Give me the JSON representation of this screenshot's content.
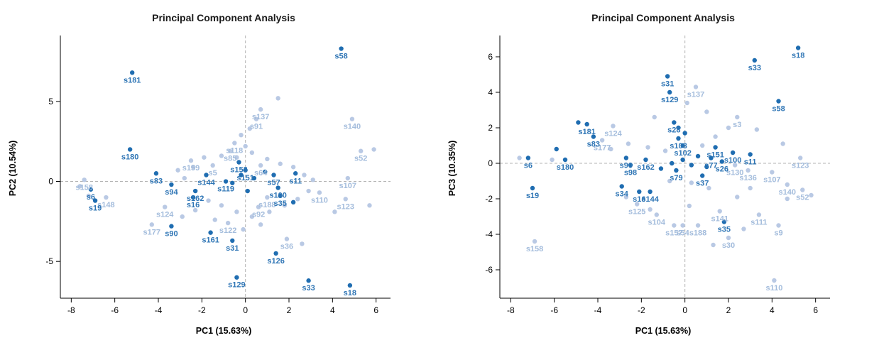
{
  "figure": {
    "background": "#ffffff",
    "description": "Two side-by-side PCA scatter plots with labeled samples"
  },
  "colors": {
    "dark": {
      "point": "#1f6db1",
      "label": "#2e75b5"
    },
    "light": {
      "point": "#b9c9e4",
      "label": "#a3bcdc"
    },
    "zero_line": "#b3b3b3",
    "axis": "#000000",
    "title": "#1a1a1a"
  },
  "chart_data": [
    {
      "type": "scatter",
      "title": "Principal Component Analysis",
      "xlabel": "PC1 (15.63%)",
      "ylabel": "PC2 (10.54%)",
      "xlim": [
        -8.5,
        6.5
      ],
      "ylim": [
        -7.3,
        8.9
      ],
      "xticks": [
        -8,
        -6,
        -4,
        -2,
        0,
        2,
        4,
        6
      ],
      "yticks": [
        -5,
        0,
        5
      ],
      "grid": "dashed-crosshair-at-zero",
      "legend": "none",
      "point_format": [
        "label",
        "x",
        "y"
      ],
      "series": [
        {
          "name": "background-samples",
          "color": "light",
          "points": [
            [
              "s137",
              0.7,
              4.5
            ],
            [
              "s91",
              0.5,
              3.9
            ],
            [
              "s140",
              4.9,
              3.9
            ],
            [
              "s52",
              5.3,
              1.9
            ],
            [
              "s118",
              -0.5,
              2.4
            ],
            [
              "s85",
              -0.7,
              1.9
            ],
            [
              "s159",
              -2.5,
              1.3
            ],
            [
              "s5",
              -1.5,
              1.0
            ],
            [
              "s64",
              0.7,
              1.0
            ],
            [
              "s158",
              -7.4,
              0.1
            ],
            [
              "s148",
              -6.4,
              -1.0
            ],
            [
              "s124",
              -3.7,
              -1.6
            ],
            [
              "s177",
              -4.3,
              -2.7
            ],
            [
              "s122",
              -0.8,
              -2.6
            ],
            [
              "s36",
              1.9,
              -3.6
            ],
            [
              "s107",
              4.7,
              0.2
            ],
            [
              "s110",
              3.4,
              -0.7
            ],
            [
              "s123",
              4.6,
              -1.1
            ],
            [
              "s188",
              1.0,
              -1.0
            ],
            [
              "s92",
              0.6,
              -1.6
            ],
            [
              "",
              1.5,
              5.2
            ],
            [
              "",
              0.2,
              3.3
            ],
            [
              "",
              -0.2,
              2.9
            ],
            [
              "",
              5.9,
              2.0
            ],
            [
              "",
              -7.6,
              -0.3
            ],
            [
              "",
              -7.2,
              -0.9
            ],
            [
              "",
              -3.1,
              0.7
            ],
            [
              "",
              -2.8,
              0.2
            ],
            [
              "",
              -2.4,
              0.9
            ],
            [
              "",
              -1.9,
              1.5
            ],
            [
              "",
              -1.1,
              1.6
            ],
            [
              "",
              -0.4,
              1.5
            ],
            [
              "",
              0.3,
              1.8
            ],
            [
              "",
              1.0,
              1.4
            ],
            [
              "",
              1.6,
              1.1
            ],
            [
              "",
              2.2,
              0.9
            ],
            [
              "",
              2.7,
              0.4
            ],
            [
              "",
              3.1,
              0.1
            ],
            [
              "",
              2.9,
              -0.6
            ],
            [
              "",
              2.4,
              -1.1
            ],
            [
              "",
              1.8,
              -1.5
            ],
            [
              "",
              1.1,
              -1.9
            ],
            [
              "",
              0.3,
              -2.2
            ],
            [
              "",
              -0.4,
              -1.9
            ],
            [
              "",
              -1.1,
              -1.5
            ],
            [
              "",
              -1.7,
              -1.2
            ],
            [
              "",
              -2.3,
              -1.8
            ],
            [
              "",
              -2.9,
              -2.2
            ],
            [
              "",
              -1.4,
              -2.4
            ],
            [
              "",
              -0.1,
              -3.0
            ],
            [
              "",
              0.7,
              -2.7
            ],
            [
              "",
              2.6,
              -3.9
            ],
            [
              "",
              4.1,
              -1.9
            ],
            [
              "",
              5.7,
              -1.5
            ],
            [
              "",
              0.0,
              2.2
            ]
          ]
        },
        {
          "name": "highlighted-samples",
          "color": "dark",
          "points": [
            [
              "s58",
              4.4,
              8.3
            ],
            [
              "s181",
              -5.2,
              6.8
            ],
            [
              "s180",
              -5.3,
              2.0
            ],
            [
              "s83",
              -4.1,
              0.5
            ],
            [
              "s94",
              -3.4,
              -0.2
            ],
            [
              "s6",
              -7.1,
              -0.5
            ],
            [
              "s19",
              -6.9,
              -1.2
            ],
            [
              "s90",
              -3.4,
              -2.8
            ],
            [
              "s161",
              -1.6,
              -3.2
            ],
            [
              "s31",
              -0.6,
              -3.7
            ],
            [
              "s129",
              -0.4,
              -6.0
            ],
            [
              "s126",
              1.4,
              -4.5
            ],
            [
              "s33",
              2.9,
              -6.2
            ],
            [
              "s18",
              4.8,
              -6.5
            ],
            [
              "s144",
              -1.8,
              0.4
            ],
            [
              "s162",
              -2.3,
              -0.6
            ],
            [
              "s16",
              -2.4,
              -1.0
            ],
            [
              "s153",
              -0.3,
              1.2
            ],
            [
              "s119",
              -0.9,
              0.0
            ],
            [
              "s151",
              0.0,
              0.7
            ],
            [
              "s57",
              1.3,
              0.4
            ],
            [
              "s100",
              1.5,
              -0.4
            ],
            [
              "s35",
              1.6,
              -0.9
            ],
            [
              "s11",
              2.3,
              0.5
            ],
            [
              "",
              -0.2,
              0.4
            ],
            [
              "",
              0.4,
              0.2
            ],
            [
              "",
              -0.6,
              -0.1
            ],
            [
              "",
              0.1,
              -0.6
            ],
            [
              "",
              0.9,
              0.6
            ],
            [
              "",
              2.2,
              -1.3
            ]
          ]
        }
      ]
    },
    {
      "type": "scatter",
      "title": "Principal Component Analysis",
      "xlabel": "PC1 (15.63%)",
      "ylabel": "PC3 (10.35%)",
      "xlim": [
        -8.5,
        6.5
      ],
      "ylim": [
        -7.6,
        7.0
      ],
      "xticks": [
        -8,
        -6,
        -4,
        -2,
        0,
        2,
        4,
        6
      ],
      "yticks": [
        -6,
        -4,
        -2,
        0,
        2,
        4,
        6
      ],
      "grid": "dashed-crosshair-at-zero",
      "legend": "none",
      "point_format": [
        "label",
        "x",
        "y"
      ],
      "series": [
        {
          "name": "background-samples",
          "color": "light",
          "points": [
            [
              "s137",
              0.5,
              4.3
            ],
            [
              "s124",
              -3.3,
              2.1
            ],
            [
              "s3",
              2.4,
              2.6
            ],
            [
              "s177",
              -3.8,
              1.3
            ],
            [
              "s123",
              5.3,
              0.3
            ],
            [
              "s107",
              4.0,
              -0.5
            ],
            [
              "s130",
              2.3,
              -0.1
            ],
            [
              "s136",
              2.9,
              -0.4
            ],
            [
              "s140",
              4.7,
              -1.2
            ],
            [
              "s52",
              5.4,
              -1.5
            ],
            [
              "s125",
              -2.2,
              -2.3
            ],
            [
              "s104",
              -1.3,
              -2.9
            ],
            [
              "s141",
              1.6,
              -2.7
            ],
            [
              "s111",
              3.4,
              -2.9
            ],
            [
              "s9",
              4.3,
              -3.5
            ],
            [
              "s157",
              -0.5,
              -3.5
            ],
            [
              "s54",
              -0.1,
              -3.5
            ],
            [
              "s188",
              0.6,
              -3.5
            ],
            [
              "s30",
              2.0,
              -4.2
            ],
            [
              "s158",
              -6.9,
              -4.4
            ],
            [
              "s110",
              4.1,
              -6.6
            ],
            [
              "",
              -7.6,
              0.3
            ],
            [
              "",
              -6.1,
              0.2
            ],
            [
              "",
              -3.4,
              0.8
            ],
            [
              "",
              -2.6,
              1.1
            ],
            [
              "",
              -1.7,
              0.9
            ],
            [
              "",
              -0.9,
              0.7
            ],
            [
              "",
              0.8,
              1.0
            ],
            [
              "",
              1.4,
              1.5
            ],
            [
              "",
              2.0,
              2.0
            ],
            [
              "",
              3.3,
              1.9
            ],
            [
              "",
              4.5,
              1.1
            ],
            [
              "",
              5.8,
              -1.8
            ],
            [
              "",
              4.7,
              -2.0
            ],
            [
              "",
              3.0,
              -1.4
            ],
            [
              "",
              2.4,
              -1.9
            ],
            [
              "",
              1.1,
              -1.4
            ],
            [
              "",
              0.3,
              -1.1
            ],
            [
              "",
              -0.7,
              -1.0
            ],
            [
              "",
              -1.6,
              -2.6
            ],
            [
              "",
              -2.7,
              -1.9
            ],
            [
              "",
              0.2,
              -2.4
            ],
            [
              "",
              1.3,
              -4.6
            ],
            [
              "",
              2.7,
              -3.7
            ],
            [
              "",
              0.1,
              3.4
            ],
            [
              "",
              1.0,
              2.9
            ],
            [
              "",
              -1.4,
              2.6
            ]
          ]
        },
        {
          "name": "highlighted-samples",
          "color": "dark",
          "points": [
            [
              "s18",
              5.2,
              6.5
            ],
            [
              "s33",
              3.2,
              5.8
            ],
            [
              "s31",
              -0.8,
              4.9
            ],
            [
              "s129",
              -0.7,
              4.0
            ],
            [
              "s58",
              4.3,
              3.5
            ],
            [
              "s181",
              -4.5,
              2.2
            ],
            [
              "s83",
              -4.2,
              1.5
            ],
            [
              "s28",
              -0.5,
              2.3
            ],
            [
              "s108",
              -0.3,
              1.4
            ],
            [
              "s102",
              -0.1,
              1.0
            ],
            [
              "s151",
              1.4,
              0.9
            ],
            [
              "s100",
              2.2,
              0.6
            ],
            [
              "s11",
              3.0,
              0.5
            ],
            [
              "s77",
              1.2,
              0.3
            ],
            [
              "s26",
              1.7,
              0.1
            ],
            [
              "s6",
              -7.2,
              0.3
            ],
            [
              "s180",
              -5.5,
              0.2
            ],
            [
              "s90",
              -2.7,
              0.3
            ],
            [
              "s98",
              -2.5,
              -0.1
            ],
            [
              "s162",
              -1.8,
              0.2
            ],
            [
              "s19",
              -7.0,
              -1.4
            ],
            [
              "s34",
              -2.9,
              -1.3
            ],
            [
              "s16",
              -2.1,
              -1.6
            ],
            [
              "s144",
              -1.6,
              -1.6
            ],
            [
              "s35",
              1.8,
              -3.3
            ],
            [
              "s37",
              0.8,
              -0.7
            ],
            [
              "s79",
              -0.4,
              -0.4
            ],
            [
              "",
              -5.9,
              0.8
            ],
            [
              "",
              -4.9,
              2.3
            ],
            [
              "",
              -0.1,
              0.2
            ],
            [
              "",
              0.3,
              -0.1
            ],
            [
              "",
              -0.6,
              0.0
            ],
            [
              "",
              0.6,
              0.4
            ],
            [
              "",
              -0.3,
              2.0
            ],
            [
              "",
              0.0,
              1.7
            ],
            [
              "",
              -1.1,
              -0.3
            ],
            [
              "",
              1.0,
              -0.2
            ]
          ]
        }
      ]
    }
  ]
}
